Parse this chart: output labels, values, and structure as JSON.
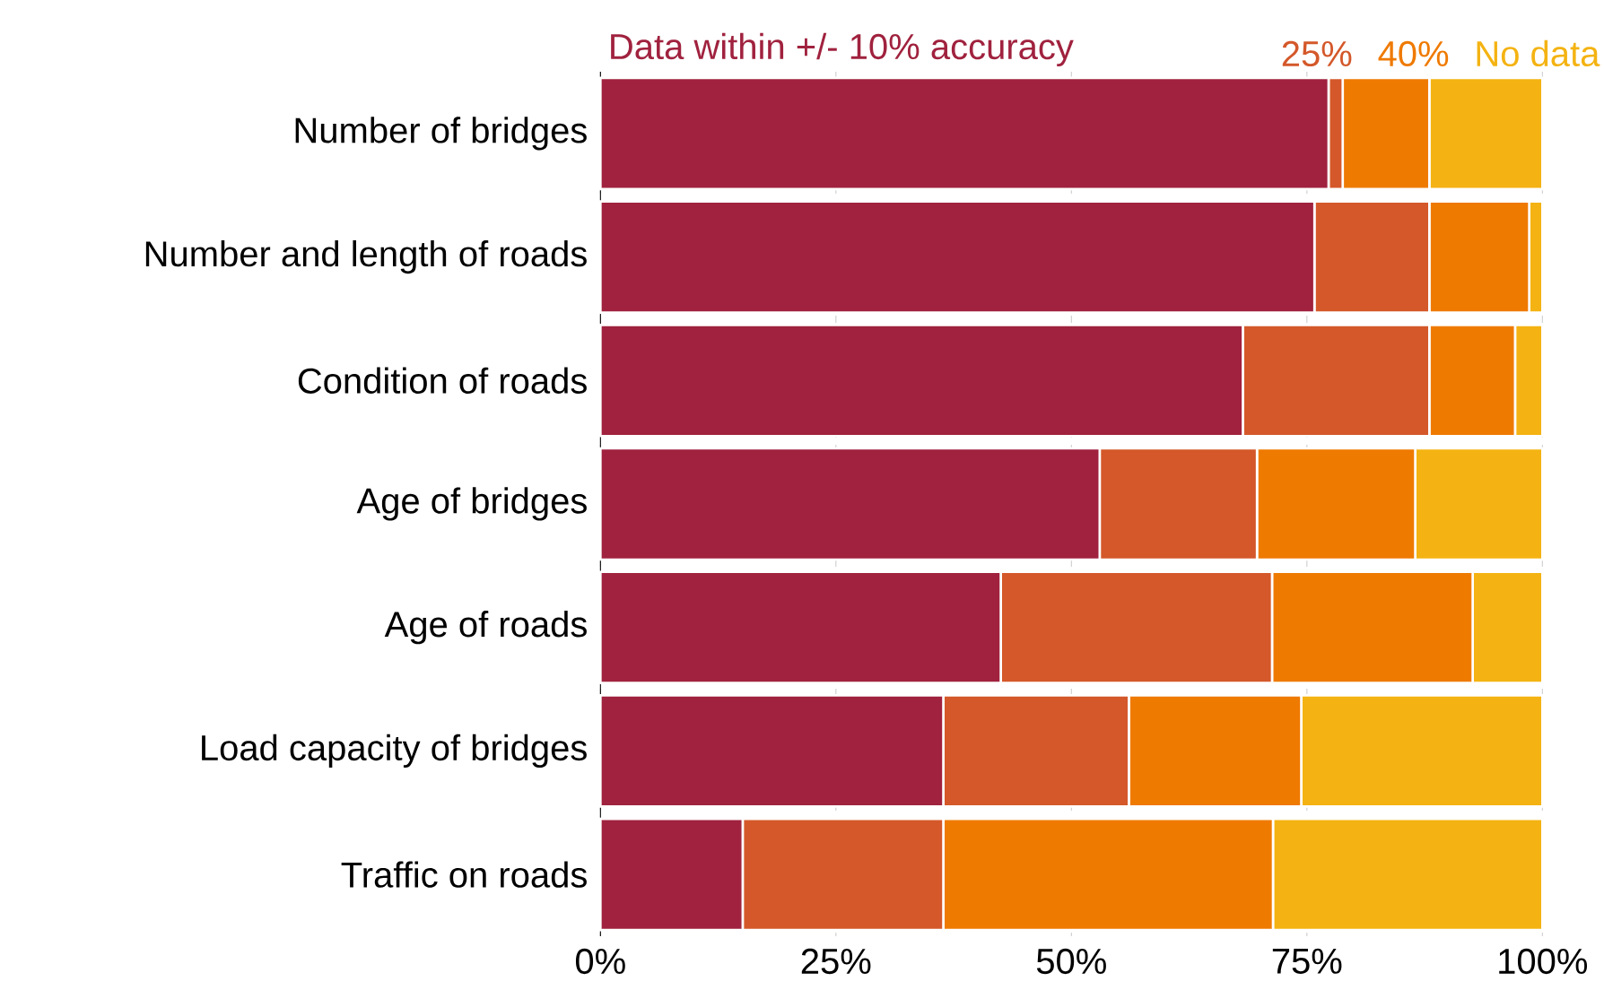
{
  "chart_data": {
    "type": "bar",
    "orientation": "horizontal",
    "stacked": true,
    "categories": [
      "Number of bridges",
      "Number and length of roads",
      "Condition of roads",
      "Age of bridges",
      "Age of roads",
      "Load capacity of bridges",
      "Traffic on roads"
    ],
    "series": [
      {
        "name": "Data within +/- 10% accuracy",
        "color": "#a0223e",
        "values": [
          77.3,
          75.8,
          68.2,
          53.0,
          42.5,
          36.4,
          15.1
        ]
      },
      {
        "name": "25%",
        "color": "#d4582a",
        "values": [
          1.5,
          12.2,
          19.8,
          16.7,
          28.8,
          19.7,
          21.3
        ]
      },
      {
        "name": "40%",
        "color": "#ef7a00",
        "values": [
          9.2,
          10.6,
          9.1,
          16.8,
          21.3,
          18.3,
          35.0
        ]
      },
      {
        "name": "No data",
        "color": "#f4b312",
        "values": [
          12.0,
          1.4,
          2.9,
          13.5,
          7.4,
          25.6,
          28.6
        ]
      }
    ],
    "xlim": [
      0,
      100
    ],
    "xticks": [
      {
        "value": 0,
        "label": "0%"
      },
      {
        "value": 25,
        "label": "25%"
      },
      {
        "value": 50,
        "label": "50%"
      },
      {
        "value": 75,
        "label": "75%"
      },
      {
        "value": 100,
        "label": "100%"
      }
    ],
    "grid": "x",
    "legend": "top"
  }
}
